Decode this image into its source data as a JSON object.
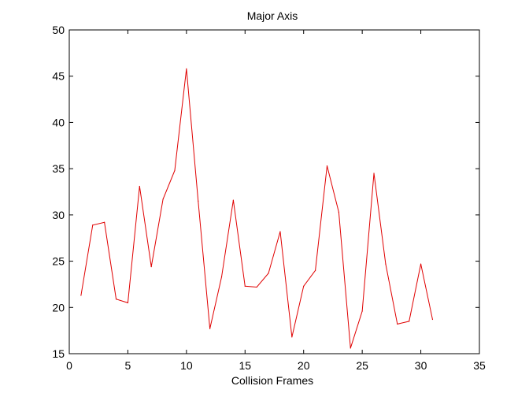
{
  "chart_data": {
    "type": "line",
    "title": "Major Axis",
    "xlabel": "Collision Frames",
    "ylabel": "",
    "xlim": [
      0,
      35
    ],
    "ylim": [
      15,
      50
    ],
    "xticks": [
      0,
      5,
      10,
      15,
      20,
      25,
      30,
      35
    ],
    "yticks": [
      15,
      20,
      25,
      30,
      35,
      40,
      45,
      50
    ],
    "grid": false,
    "series": [
      {
        "color": "#e00000",
        "x": [
          1,
          2,
          3,
          4,
          5,
          6,
          7,
          8,
          9,
          10,
          11,
          12,
          13,
          14,
          15,
          16,
          17,
          18,
          19,
          20,
          21,
          22,
          23,
          24,
          25,
          26,
          27,
          28,
          29,
          30,
          31
        ],
        "y": [
          21.3,
          28.9,
          29.2,
          20.9,
          20.5,
          33.1,
          24.4,
          31.7,
          34.8,
          45.8,
          31.5,
          17.7,
          23.3,
          31.6,
          22.3,
          22.2,
          23.7,
          28.2,
          16.8,
          22.3,
          24.0,
          35.3,
          30.3,
          15.6,
          19.6,
          34.5,
          24.7,
          18.2,
          18.5,
          24.7,
          18.7
        ]
      }
    ]
  }
}
